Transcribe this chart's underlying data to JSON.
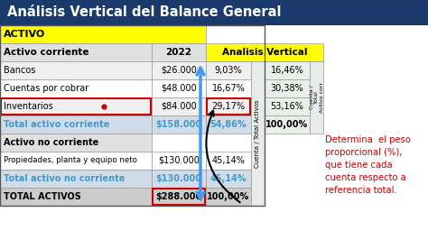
{
  "title": "Análisis Vertical del Balance General",
  "title_bg": "#1a3a6b",
  "title_color": "#ffffff",
  "yellow_bg": "#ffff00",
  "light_gray_bg": "#e0e0e0",
  "white_bg": "#ffffff",
  "blue_total_text": "#4499cc",
  "blue_total_bg": "#ddeeff",
  "dark_row_bg": "#cccccc",
  "av_col_bg": "#e8f0e8",
  "red_outline": "#cc0000",
  "arrow_blue": "#4499ee",
  "annotation_color": "#cc0000",
  "sidebar_bg": "#e8ece8",
  "annotation": "Determina  el peso\nproporcional (%),\nque tiene cada\ncuenta respecto a\nreferencia total.",
  "rows": [
    {
      "acct": "Bancos",
      "val": "$26.000",
      "pct": "9,03%",
      "av": "16,46%",
      "type": "normal"
    },
    {
      "acct": "Cuentas por cobrar",
      "val": "$48.000",
      "pct": "16,67%",
      "av": "30,38%",
      "type": "normal"
    },
    {
      "acct": "Inventarios",
      "val": "$84.000",
      "pct": "29,17%",
      "av": "53,16%",
      "type": "inv"
    },
    {
      "acct": "Total activo corriente",
      "val": "$158.000",
      "pct": "54,86%",
      "av": "100,00%",
      "type": "total"
    },
    {
      "acct": "Activo no corriente",
      "val": "",
      "pct": "",
      "av": "",
      "type": "section"
    },
    {
      "acct": "Propiedades, planta y equipo neto",
      "val": "$130.000",
      "pct": "45,14%",
      "av": "",
      "type": "normal"
    },
    {
      "acct": "Total activo no corriente",
      "val": "$130.000",
      "pct": "45,14%",
      "av": "",
      "type": "total"
    },
    {
      "acct": "TOTAL ACTIVOS",
      "val": "$288.000",
      "pct": "100,00%",
      "av": "",
      "type": "grand"
    }
  ]
}
